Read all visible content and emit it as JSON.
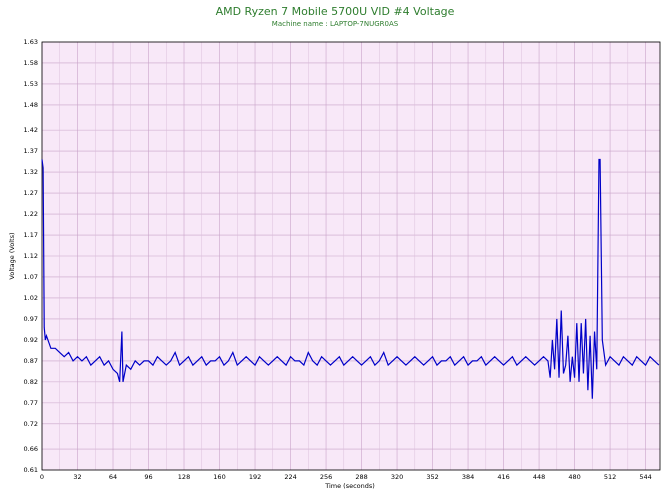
{
  "chart_data": {
    "type": "line",
    "title": "AMD Ryzen 7 Mobile 5700U VID #4 Voltage",
    "subtitle": "Machine name : LAPTOP-7NUGR0AS",
    "x_label": "Time (seconds)",
    "y_label": "Voltage (Volts)",
    "xlim": [
      0,
      557
    ],
    "ylim": [
      0.61,
      1.63
    ],
    "xticks": [
      0,
      32,
      64,
      96,
      128,
      160,
      192,
      224,
      256,
      288,
      320,
      352,
      384,
      416,
      448,
      480,
      512,
      544
    ],
    "yticks": [
      0.61,
      0.66,
      0.72,
      0.77,
      0.82,
      0.87,
      0.92,
      0.97,
      1.02,
      1.07,
      1.12,
      1.17,
      1.22,
      1.27,
      1.32,
      1.37,
      1.42,
      1.48,
      1.53,
      1.58,
      1.63
    ],
    "grid": true,
    "series": [
      {
        "color": "#0000c8",
        "x": [
          0,
          1,
          2,
          3,
          4,
          8,
          12,
          16,
          20,
          24,
          28,
          32,
          36,
          40,
          44,
          48,
          52,
          56,
          60,
          64,
          68,
          70,
          72,
          73,
          76,
          80,
          84,
          88,
          92,
          96,
          100,
          104,
          108,
          112,
          116,
          120,
          124,
          128,
          132,
          136,
          140,
          144,
          148,
          152,
          156,
          160,
          164,
          168,
          172,
          176,
          180,
          184,
          188,
          192,
          196,
          200,
          204,
          208,
          212,
          216,
          220,
          224,
          228,
          232,
          236,
          240,
          244,
          248,
          252,
          256,
          260,
          264,
          268,
          272,
          276,
          280,
          284,
          288,
          292,
          296,
          300,
          304,
          308,
          312,
          316,
          320,
          324,
          328,
          332,
          336,
          340,
          344,
          348,
          352,
          356,
          360,
          364,
          368,
          372,
          376,
          380,
          384,
          388,
          392,
          396,
          400,
          404,
          408,
          412,
          416,
          420,
          424,
          428,
          432,
          436,
          440,
          444,
          448,
          452,
          456,
          458,
          460,
          462,
          464,
          466,
          468,
          470,
          472,
          474,
          476,
          478,
          480,
          482,
          484,
          486,
          488,
          490,
          492,
          494,
          496,
          498,
          500,
          502,
          503,
          505,
          508,
          512,
          516,
          520,
          524,
          528,
          532,
          536,
          540,
          544,
          548,
          552,
          556
        ],
        "values": [
          1.35,
          1.33,
          0.95,
          0.92,
          0.93,
          0.9,
          0.9,
          0.89,
          0.88,
          0.89,
          0.87,
          0.88,
          0.87,
          0.88,
          0.86,
          0.87,
          0.88,
          0.86,
          0.87,
          0.85,
          0.84,
          0.82,
          0.94,
          0.82,
          0.86,
          0.85,
          0.87,
          0.86,
          0.87,
          0.87,
          0.86,
          0.88,
          0.87,
          0.86,
          0.87,
          0.89,
          0.86,
          0.87,
          0.88,
          0.86,
          0.87,
          0.88,
          0.86,
          0.87,
          0.87,
          0.88,
          0.86,
          0.87,
          0.89,
          0.86,
          0.87,
          0.88,
          0.87,
          0.86,
          0.88,
          0.87,
          0.86,
          0.87,
          0.88,
          0.87,
          0.86,
          0.88,
          0.87,
          0.87,
          0.86,
          0.89,
          0.87,
          0.86,
          0.88,
          0.87,
          0.86,
          0.87,
          0.88,
          0.86,
          0.87,
          0.88,
          0.87,
          0.86,
          0.87,
          0.88,
          0.86,
          0.87,
          0.89,
          0.86,
          0.87,
          0.88,
          0.87,
          0.86,
          0.87,
          0.88,
          0.87,
          0.86,
          0.87,
          0.88,
          0.86,
          0.87,
          0.87,
          0.88,
          0.86,
          0.87,
          0.88,
          0.86,
          0.87,
          0.87,
          0.88,
          0.86,
          0.87,
          0.88,
          0.87,
          0.86,
          0.87,
          0.88,
          0.86,
          0.87,
          0.88,
          0.87,
          0.86,
          0.87,
          0.88,
          0.87,
          0.83,
          0.92,
          0.85,
          0.97,
          0.83,
          0.99,
          0.84,
          0.86,
          0.93,
          0.82,
          0.88,
          0.83,
          0.96,
          0.82,
          0.96,
          0.84,
          0.97,
          0.8,
          0.93,
          0.78,
          0.94,
          0.85,
          1.35,
          1.35,
          0.92,
          0.86,
          0.88,
          0.87,
          0.86,
          0.88,
          0.87,
          0.86,
          0.88,
          0.87,
          0.86,
          0.88,
          0.87,
          0.86
        ]
      }
    ]
  }
}
